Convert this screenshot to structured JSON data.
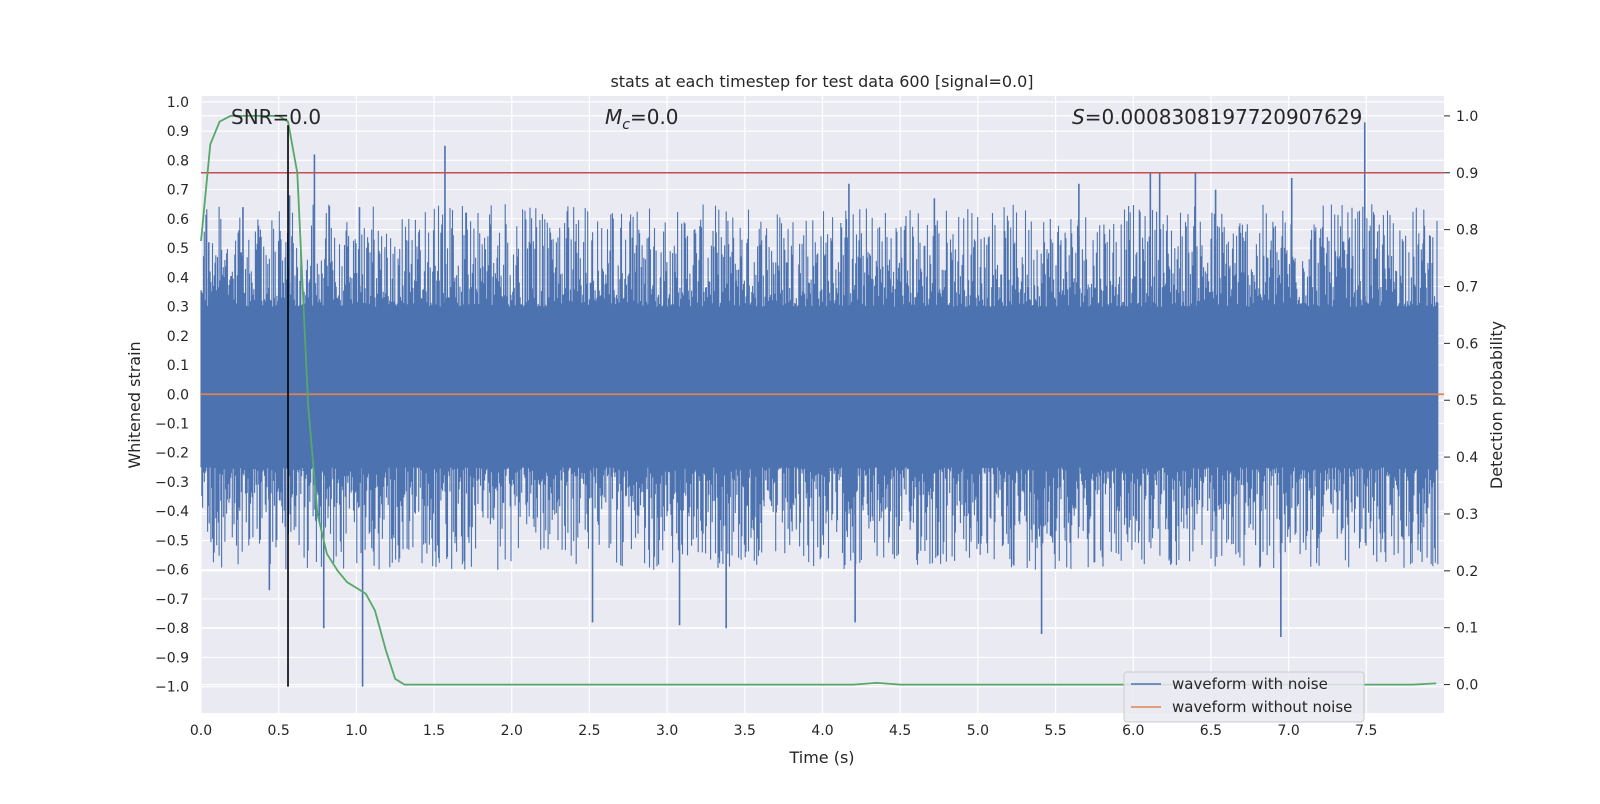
{
  "chart_data": {
    "type": "line",
    "title": "stats at each timestep for test data 600 [signal=0.0]",
    "xlabel": "Time (s)",
    "ylabel": "Whitened strain",
    "y2label": "Detection probability",
    "xlim": [
      0.0,
      8.0
    ],
    "ylim": [
      -1.09,
      1.02
    ],
    "y2lim": [
      -0.05,
      1.035
    ],
    "xticks": [
      0.0,
      0.5,
      1.0,
      1.5,
      2.0,
      2.5,
      3.0,
      3.5,
      4.0,
      4.5,
      5.0,
      5.5,
      6.0,
      6.5,
      7.0,
      7.5
    ],
    "xtick_labels": [
      "0.0",
      "0.5",
      "1.0",
      "1.5",
      "2.0",
      "2.5",
      "3.0",
      "3.5",
      "4.0",
      "4.5",
      "5.0",
      "5.5",
      "6.0",
      "6.5",
      "7.0",
      "7.5"
    ],
    "yticks": [
      1.0,
      0.9,
      0.8,
      0.7,
      0.6,
      0.5,
      0.4,
      0.3,
      0.2,
      0.1,
      0.0,
      -0.1,
      -0.2,
      -0.3,
      -0.4,
      -0.5,
      -0.6,
      -0.7,
      -0.8,
      -0.9,
      -1.0
    ],
    "ytick_labels": [
      "1.0",
      "0.9",
      "0.8",
      "0.7",
      "0.6",
      "0.5",
      "0.4",
      "0.3",
      "0.2",
      "0.1",
      "0.0",
      "−0.1",
      "−0.2",
      "−0.3",
      "−0.4",
      "−0.5",
      "−0.6",
      "−0.7",
      "−0.8",
      "−0.9",
      "−1.0"
    ],
    "y2ticks": [
      1.0,
      0.9,
      0.8,
      0.7,
      0.6,
      0.5,
      0.4,
      0.3,
      0.2,
      0.1,
      0.0
    ],
    "y2tick_labels": [
      "1.0",
      "0.9",
      "0.8",
      "0.7",
      "0.6",
      "0.5",
      "0.4",
      "0.3",
      "0.2",
      "0.1",
      "0.0"
    ],
    "annotations": {
      "snr": "SNR=0.0",
      "mc_symbol": "M",
      "mc_subscript": "c",
      "mc_value": "=0.0",
      "s_symbol": "S",
      "s_value": "=0.0008308197720907629"
    },
    "threshold_line": {
      "axis": "y2",
      "value": 0.9,
      "color": "#c44e52"
    },
    "marker_line": {
      "x": 0.56,
      "y_from": -1.0,
      "y_to": 0.92,
      "color": "#000000"
    },
    "legend": {
      "placement": "lower-right",
      "entries": [
        {
          "label": "waveform with noise",
          "color": "#4c72b0"
        },
        {
          "label": "waveform without noise",
          "color": "#dd8452"
        }
      ]
    },
    "series": [
      {
        "name": "waveform with noise",
        "axis": "y",
        "color": "#4c72b0",
        "style": "noise",
        "band": {
          "core_min": -0.25,
          "core_max": 0.3,
          "typical_max": 0.65,
          "typical_min": -0.6
        },
        "x": [
          0.05,
          0.27,
          0.44,
          0.57,
          0.73,
          0.79,
          1.02,
          1.04,
          1.57,
          2.52,
          3.08,
          3.38,
          4.17,
          4.21,
          4.72,
          5.41,
          5.65,
          6.11,
          6.17,
          6.4,
          6.53,
          6.95,
          7.02,
          7.49,
          7.87
        ],
        "values": [
          0.52,
          0.64,
          -0.67,
          0.68,
          0.82,
          -0.8,
          0.64,
          -1.0,
          0.85,
          -0.78,
          -0.79,
          -0.8,
          0.72,
          -0.78,
          0.67,
          -0.82,
          0.72,
          0.76,
          0.76,
          0.76,
          0.7,
          -0.83,
          0.74,
          0.93,
          0.53
        ]
      },
      {
        "name": "waveform without noise",
        "axis": "y",
        "color": "#dd8452",
        "x": [
          0.0,
          8.0
        ],
        "values": [
          0.0,
          0.0
        ]
      },
      {
        "name": "detection probability",
        "axis": "y2",
        "color": "#55a868",
        "x": [
          0.0,
          0.06,
          0.12,
          0.19,
          0.25,
          0.31,
          0.37,
          0.44,
          0.5,
          0.56,
          0.62,
          0.69,
          0.75,
          0.81,
          0.88,
          0.94,
          1.0,
          1.06,
          1.12,
          1.19,
          1.25,
          1.31,
          1.37,
          1.5,
          2.0,
          3.0,
          4.0,
          4.2,
          4.35,
          4.5,
          5.0,
          6.0,
          7.0,
          7.5,
          7.8,
          7.95
        ],
        "values": [
          0.78,
          0.95,
          0.99,
          1.0,
          1.0,
          1.0,
          1.0,
          1.0,
          1.0,
          0.99,
          0.9,
          0.49,
          0.3,
          0.23,
          0.2,
          0.18,
          0.17,
          0.16,
          0.13,
          0.06,
          0.01,
          0.0,
          0.0,
          0.0,
          0.0,
          0.0,
          0.0,
          0.0,
          0.003,
          0.0,
          0.0,
          0.0,
          0.0,
          0.0,
          0.0,
          0.002
        ]
      }
    ]
  }
}
